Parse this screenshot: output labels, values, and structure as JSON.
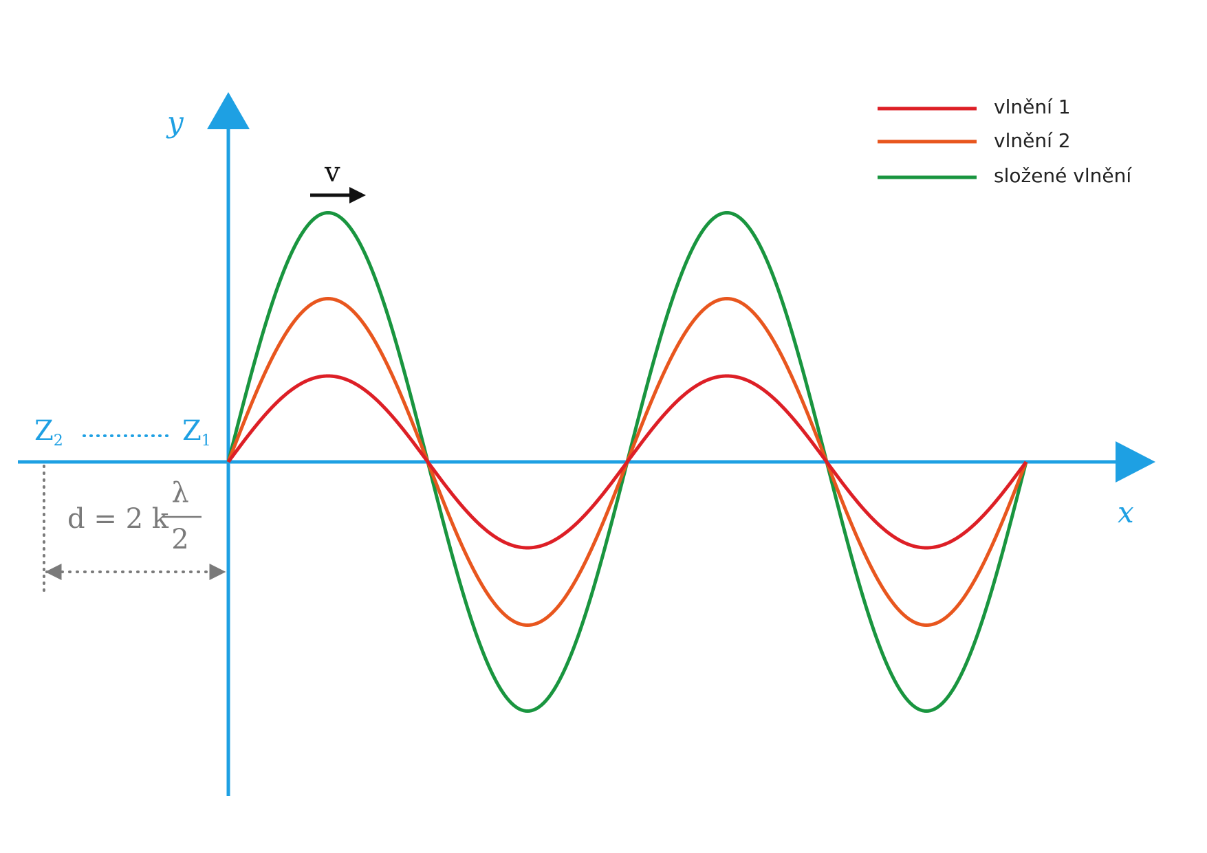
{
  "colors": {
    "axis": "#1ea0e3",
    "wave1": "#dd1f26",
    "wave2": "#e8561e",
    "composite": "#19953f",
    "velocity_arrow": "#111111",
    "distance": "#7a7a7a"
  },
  "axes": {
    "x_label": "x",
    "y_label": "y"
  },
  "velocity": {
    "label": "v"
  },
  "legend": {
    "items": [
      {
        "label": "vlnění 1",
        "color": "#dd1f26"
      },
      {
        "label": "vlnění 2",
        "color": "#e8561e"
      },
      {
        "label": "složené vlnění",
        "color": "#19953f"
      }
    ]
  },
  "sources": {
    "z2": {
      "letter": "Z",
      "subscript": "2"
    },
    "z1": {
      "letter": "Z",
      "subscript": "1"
    }
  },
  "distance_formula": {
    "lhs": "d",
    "equals": "=",
    "coefficient": "2 k",
    "numerator": "λ",
    "denominator": "2"
  },
  "waves": {
    "periods_shown": 2,
    "amplitudes": {
      "wave1": 1,
      "wave2": 1.9,
      "composite": 2.9
    }
  }
}
